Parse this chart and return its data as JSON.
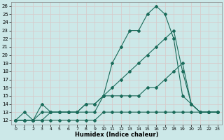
{
  "xlabel": "Humidex (Indice chaleur)",
  "bg_color": "#cce8e8",
  "grid_color": "#b0d0d0",
  "line_color": "#1a6b5a",
  "xlim": [
    -0.5,
    23.5
  ],
  "ylim": [
    11.5,
    26.5
  ],
  "xticks": [
    0,
    1,
    2,
    3,
    4,
    5,
    6,
    7,
    8,
    9,
    10,
    11,
    12,
    13,
    14,
    15,
    16,
    17,
    18,
    19,
    20,
    21,
    22,
    23
  ],
  "yticks": [
    12,
    13,
    14,
    15,
    16,
    17,
    18,
    19,
    20,
    21,
    22,
    23,
    24,
    25,
    26
  ],
  "line1_x": [
    0,
    1,
    2,
    3,
    4,
    5,
    6,
    7,
    8,
    9,
    10,
    11,
    12,
    13,
    14,
    15,
    16,
    17,
    18,
    19,
    20,
    21,
    22,
    23
  ],
  "line1_y": [
    12,
    12,
    12,
    12,
    12,
    12,
    12,
    12,
    12,
    12,
    13,
    13,
    13,
    13,
    13,
    13,
    13,
    13,
    13,
    13,
    13,
    13,
    13,
    13
  ],
  "line2_x": [
    0,
    1,
    2,
    3,
    4,
    5,
    6,
    7,
    8,
    9,
    10,
    11,
    12,
    13,
    14,
    15,
    16,
    17,
    18,
    19,
    20,
    21,
    22,
    23
  ],
  "line2_y": [
    12,
    13,
    12,
    14,
    13,
    13,
    13,
    13,
    13,
    13,
    15,
    15,
    15,
    15,
    15,
    16,
    16,
    17,
    18,
    19,
    14,
    13,
    13,
    13
  ],
  "line3_x": [
    0,
    1,
    2,
    3,
    4,
    5,
    6,
    7,
    8,
    9,
    10,
    11,
    12,
    13,
    14,
    15,
    16,
    17,
    18,
    19,
    20,
    21,
    22,
    23
  ],
  "line3_y": [
    12,
    12,
    12,
    12,
    13,
    13,
    13,
    13,
    14,
    14,
    15,
    16,
    17,
    18,
    19,
    20,
    21,
    22,
    23,
    18,
    14,
    13,
    13,
    13
  ],
  "line4_x": [
    0,
    1,
    2,
    3,
    4,
    5,
    6,
    7,
    8,
    9,
    10,
    11,
    12,
    13,
    14,
    15,
    16,
    17,
    18,
    19,
    20,
    21,
    22,
    23
  ],
  "line4_y": [
    12,
    12,
    12,
    13,
    13,
    13,
    13,
    13,
    14,
    14,
    15,
    19,
    21,
    23,
    23,
    25,
    26,
    25,
    22,
    15,
    14,
    13,
    13,
    13
  ],
  "markersize": 2.0,
  "linewidth": 0.8
}
